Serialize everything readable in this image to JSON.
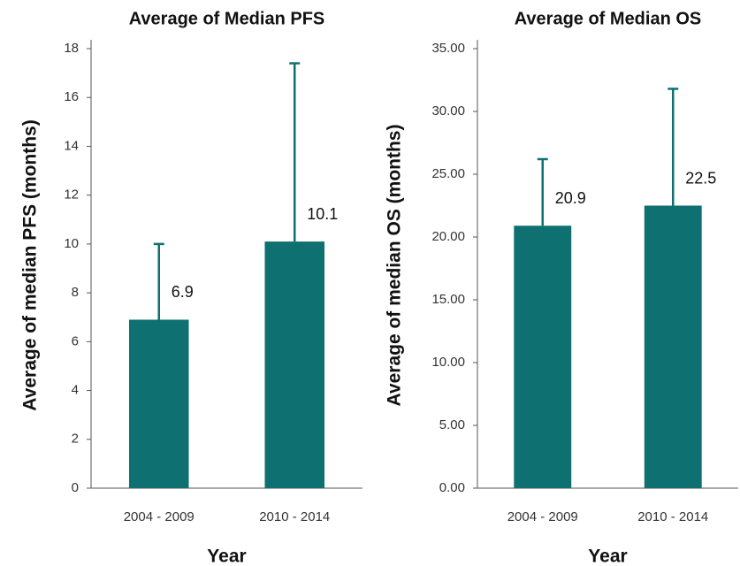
{
  "chart_data": [
    {
      "type": "bar",
      "title": "Average of Median PFS",
      "y_label": "Average of median PFS (months)",
      "x_label": "Year",
      "categories": [
        "2004 - 2009",
        "2010 - 2014"
      ],
      "series": [
        {
          "color": "#0e7070",
          "values": [
            6.9,
            10.1
          ],
          "errors": [
            3.1,
            7.3
          ]
        }
      ],
      "ylim": [
        0,
        18
      ],
      "yticks": [
        0,
        2,
        4,
        6,
        8,
        10,
        12,
        14,
        16,
        18
      ]
    },
    {
      "type": "bar",
      "title": "Average of Median OS",
      "y_label": "Average of median OS (months)",
      "x_label": "Year",
      "categories": [
        "2004 - 2009",
        "2010 - 2014"
      ],
      "series": [
        {
          "color": "#0e7070",
          "values": [
            20.9,
            22.5
          ],
          "errors": [
            5.3,
            9.3
          ]
        }
      ],
      "ylim": [
        0,
        35
      ],
      "yticks": [
        {
          "value": 0,
          "label": "0.00"
        },
        {
          "value": 5,
          "label": "5.00"
        },
        {
          "value": 10,
          "label": "10.00"
        },
        {
          "value": 15,
          "label": "15.00"
        },
        {
          "value": 20,
          "label": "20.00"
        },
        {
          "value": 25,
          "label": "25.00"
        },
        {
          "value": 30,
          "label": "30.00"
        },
        {
          "value": 35,
          "label": "35.00"
        }
      ]
    }
  ]
}
